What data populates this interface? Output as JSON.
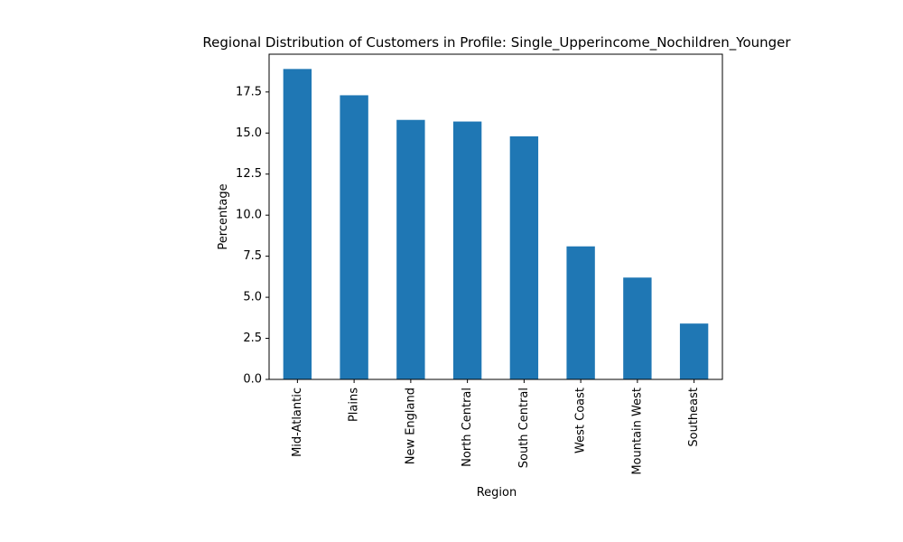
{
  "chart_data": {
    "type": "bar",
    "title": "Regional Distribution of Customers in Profile: Single_Upperincome_Nochildren_Younger",
    "xlabel": "Region",
    "ylabel": "Percentage",
    "categories": [
      "Mid-Atlantic",
      "Plains",
      "New England",
      "North Central",
      "South Central",
      "West Coast",
      "Mountain West",
      "Southeast"
    ],
    "values": [
      18.9,
      17.3,
      15.8,
      15.7,
      14.8,
      8.1,
      6.2,
      3.4
    ],
    "ylim": [
      0,
      19.8
    ],
    "yticks": [
      "0.0",
      "2.5",
      "5.0",
      "7.5",
      "10.0",
      "12.5",
      "15.0",
      "17.5"
    ],
    "bar_color": "#1f77b4",
    "grid": false,
    "legend": false
  }
}
